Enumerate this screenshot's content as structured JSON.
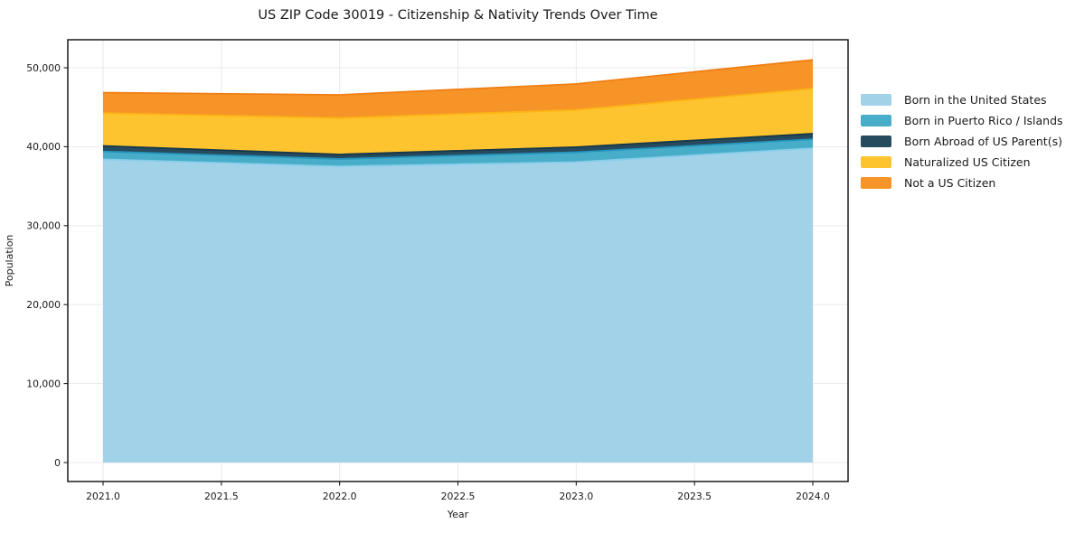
{
  "chart_data": {
    "type": "area",
    "stacked": true,
    "title": "US ZIP Code 30019 - Citizenship & Nativity Trends Over Time",
    "xlabel": "Year",
    "ylabel": "Population",
    "x": [
      2021,
      2022,
      2023,
      2024
    ],
    "xticks": [
      2021.0,
      2021.5,
      2022.0,
      2022.5,
      2023.0,
      2023.5,
      2024.0
    ],
    "yticks": [
      0,
      10000,
      20000,
      30000,
      40000,
      50000
    ],
    "ylim": [
      0,
      50000
    ],
    "grid": true,
    "legend_position": "right-outside",
    "series": [
      {
        "name": "Born in the United States",
        "values": [
          38400,
          37500,
          38050,
          39800
        ],
        "fill": "#A2D2E8",
        "edge": "#87CEEB"
      },
      {
        "name": "Born in Puerto Rico / Islands",
        "values": [
          1000,
          950,
          1250,
          1150
        ],
        "fill": "#48ADC8",
        "edge": "#2596BE"
      },
      {
        "name": "Born Abroad of US Parent(s)",
        "values": [
          700,
          570,
          650,
          700
        ],
        "fill": "#264A5E",
        "edge": "#17374A"
      },
      {
        "name": "Naturalized US Citizen",
        "values": [
          4150,
          4600,
          4700,
          5700
        ],
        "fill": "#FDC42F",
        "edge": "#FDB515"
      },
      {
        "name": "Not a US Citizen",
        "values": [
          2600,
          2950,
          3300,
          3650
        ],
        "fill": "#F79428",
        "edge": "#F07F13"
      }
    ],
    "colors": {
      "frame": "#1a1a1a",
      "grid": "#e8e8e8",
      "text": "#1a1a1a",
      "background": "#ffffff"
    }
  }
}
